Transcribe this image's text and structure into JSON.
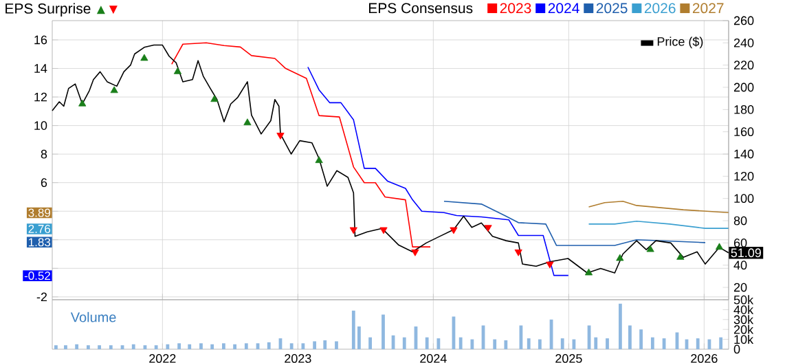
{
  "chart_data": [
    {
      "type": "line",
      "title": "EPS Surprise",
      "legend_title": "EPS Consensus",
      "legend": "top",
      "grid": true,
      "tick_labels": "y",
      "xlim": [
        "2021-03-10",
        "2026-03-08"
      ],
      "xticks": [
        "2022",
        "2023",
        "2024",
        "2025",
        "2026"
      ],
      "ylim": [
        -2.2,
        17.35
      ],
      "yticks": [
        -2,
        {
          "value": 0,
          "label": null
        },
        {
          "value": 2,
          "label": null
        },
        {
          "value": 4,
          "label": null
        },
        6,
        8,
        10,
        12,
        14,
        16
      ],
      "y2lim": [
        8.9,
        260
      ],
      "annotations": [
        {
          "text": "3.89",
          "y": 3.89
        },
        {
          "text": "2.76",
          "y": 2.76
        },
        {
          "text": "1.83",
          "y": 1.83
        },
        {
          "text": "-0.52",
          "y": -0.52
        }
      ],
      "y2ticks": [
        20,
        40,
        60,
        80,
        100,
        120,
        140,
        160,
        180,
        200,
        220,
        240,
        260
      ],
      "series": [
        {
          "name": "2023",
          "color": "#ff0000",
          "x": [
            "2022-01-26",
            "2022-02-25",
            "2022-04-29",
            "2022-06-16",
            "2022-07-30",
            "2022-08-29",
            "2022-10-31",
            "2022-11-29",
            "2023-01-24",
            "2023-02-27",
            "2023-04-23",
            "2023-05-31",
            "2023-06-29",
            "2023-07-29",
            "2023-08-24",
            "2023-10-18",
            "2023-11-06",
            "2023-12-24"
          ],
          "values": [
            14.3,
            15.7,
            15.8,
            15.6,
            15.5,
            14.9,
            14.7,
            14.0,
            13.3,
            10.7,
            10.6,
            7.1,
            6.0,
            6.0,
            5.0,
            4.8,
            1.5,
            1.5
          ]
        },
        {
          "name": "2024",
          "color": "#0000ff",
          "x": [
            "2023-01-28",
            "2023-02-27",
            "2023-03-28",
            "2023-04-27",
            "2023-05-31",
            "2023-06-29",
            "2023-07-29",
            "2023-08-31",
            "2023-10-18",
            "2023-11-06",
            "2023-12-01",
            "2024-01-30",
            "2024-03-04",
            "2024-05-10",
            "2024-07-23",
            "2024-08-18",
            "2024-10-24",
            "2024-11-22",
            "2024-12-31"
          ],
          "values": [
            14.1,
            12.5,
            11.6,
            11.6,
            10.4,
            7.0,
            7.0,
            6.1,
            5.6,
            4.8,
            4.0,
            3.9,
            3.7,
            3.6,
            3.4,
            2.3,
            2.3,
            -0.5,
            -0.5
          ]
        },
        {
          "name": "2025",
          "color": "#1f5fad",
          "x": [
            "2024-01-30",
            "2024-05-10",
            "2024-07-12",
            "2024-08-18",
            "2024-10-31",
            "2024-11-29",
            "2025-05-05",
            "2025-07-03",
            "2026-01-04"
          ],
          "values": [
            4.7,
            4.5,
            3.7,
            3.2,
            3.1,
            1.6,
            1.6,
            2.0,
            1.8
          ]
        },
        {
          "name": "2026",
          "color": "#3a9fd0",
          "x": [
            "2025-02-24",
            "2025-05-05",
            "2025-07-03",
            "2025-09-30",
            "2026-01-04",
            "2026-03-08"
          ],
          "values": [
            3.1,
            3.1,
            3.3,
            3.1,
            2.8,
            2.8
          ]
        },
        {
          "name": "2027",
          "color": "#b07d2e",
          "x": [
            "2025-02-24",
            "2025-04-08",
            "2025-05-27",
            "2025-07-03",
            "2025-11-06",
            "2026-03-08"
          ],
          "values": [
            4.3,
            4.6,
            4.7,
            4.4,
            4.1,
            3.9
          ]
        },
        {
          "name": "Price ($)",
          "color": "#000000",
          "axis": "y2",
          "x": [
            "2021-03-10",
            "2021-03-29",
            "2021-04-10",
            "2021-04-23",
            "2021-05-11",
            "2021-05-30",
            "2021-06-18",
            "2021-06-29",
            "2021-07-17",
            "2021-08-05",
            "2021-08-31",
            "2021-09-19",
            "2021-10-07",
            "2021-10-18",
            "2021-11-13",
            "2021-12-09",
            "2022-01-01",
            "2022-01-19",
            "2022-02-07",
            "2022-02-25",
            "2022-03-23",
            "2022-04-07",
            "2022-04-21",
            "2022-05-10",
            "2022-05-28",
            "2022-06-16",
            "2022-07-04",
            "2022-07-23",
            "2022-08-18",
            "2022-08-29",
            "2022-09-24",
            "2022-10-20",
            "2022-10-31",
            "2022-11-11",
            "2022-11-15",
            "2022-12-14",
            "2023-01-06",
            "2023-02-08",
            "2023-02-27",
            "2023-03-21",
            "2023-04-16",
            "2023-05-16",
            "2023-05-31",
            "2023-06-04",
            "2023-07-07",
            "2023-08-16",
            "2023-09-30",
            "2023-11-06",
            "2023-12-13",
            "2024-01-19",
            "2024-02-25",
            "2024-03-23",
            "2024-04-14",
            "2024-05-10",
            "2024-06-09",
            "2024-07-16",
            "2024-08-18",
            "2024-08-29",
            "2024-10-05",
            "2024-11-11",
            "2024-12-30",
            "2025-02-20",
            "2025-03-28",
            "2025-05-05",
            "2025-05-27",
            "2025-07-03",
            "2025-07-29",
            "2025-08-24",
            "2025-10-03",
            "2025-11-06",
            "2025-12-13",
            "2026-01-04",
            "2026-02-11",
            "2026-03-08"
          ],
          "values": [
            179,
            187,
            183,
            199,
            203,
            185,
            197,
            207,
            214,
            205,
            201,
            214,
            220,
            230,
            236,
            238,
            238,
            228,
            222,
            205,
            207,
            224,
            210,
            199,
            189,
            169,
            185,
            191,
            205,
            175,
            158,
            170,
            189,
            183,
            158,
            140,
            152,
            150,
            136,
            111,
            125,
            119,
            105,
            66,
            70,
            73,
            58,
            52,
            60,
            66,
            72,
            84,
            74,
            78,
            66,
            62,
            60,
            41,
            39,
            43,
            46,
            33,
            37,
            33,
            50,
            62,
            54,
            62,
            60,
            47,
            52,
            41,
            56,
            51.09
          ],
          "value_labels": [
            null,
            null,
            null,
            null,
            null,
            null,
            null,
            null,
            null,
            null,
            null,
            null,
            null,
            null,
            null,
            null,
            null,
            null,
            null,
            null,
            null,
            null,
            null,
            null,
            null,
            null,
            null,
            null,
            null,
            null,
            null,
            null,
            null,
            null,
            null,
            null,
            null,
            null,
            null,
            null,
            null,
            null,
            null,
            null,
            null,
            null,
            null,
            null,
            null,
            null,
            null,
            null,
            null,
            null,
            null,
            null,
            null,
            null,
            null,
            null,
            null,
            null,
            null,
            null,
            null,
            null,
            null,
            null,
            null,
            null,
            null,
            null,
            null,
            "51.09"
          ]
        },
        {
          "type": "scatter",
          "color": "#1a7f1a",
          "marker": "triangle",
          "axis": "y2",
          "x": [
            "2021-05-30",
            "2021-08-24",
            "2021-11-13",
            "2022-02-11",
            "2022-05-21",
            "2022-08-18",
            "2023-02-27",
            "2025-02-24",
            "2025-05-19",
            "2025-08-09",
            "2025-10-29",
            "2026-02-11"
          ],
          "values": [
            185,
            197,
            226,
            214,
            189,
            168,
            134,
            33,
            46,
            54,
            47,
            56
          ]
        },
        {
          "type": "scatter",
          "color": "#ff0000",
          "marker": "triangle-down",
          "axis": "y2",
          "x": [
            "2022-11-15",
            "2023-05-31",
            "2023-08-20",
            "2023-11-13",
            "2024-02-25",
            "2024-05-28",
            "2024-08-18",
            "2024-11-11"
          ],
          "values": [
            157,
            72,
            72,
            52,
            72,
            74,
            52,
            41
          ]
        }
      ]
    },
    {
      "type": "bar",
      "title": "Volume",
      "grid": "x",
      "color": "#8fb8e0",
      "xlim": [
        "2021-03-10",
        "2026-03-08"
      ],
      "xticks": [
        "2022",
        "2023",
        "2024",
        "2025",
        "2026"
      ],
      "ylim": [
        0,
        50000
      ],
      "yticks": [
        0,
        {
          "value": 10000,
          "label": "10k"
        },
        {
          "value": 20000,
          "label": "20k"
        },
        {
          "value": 30000,
          "label": "30k"
        },
        {
          "value": 40000,
          "label": "40k"
        },
        {
          "value": 50000,
          "label": "50k"
        }
      ],
      "x": [
        "2021-03-20",
        "2021-04-15",
        "2021-05-15",
        "2021-06-15",
        "2021-07-15",
        "2021-08-15",
        "2021-09-15",
        "2021-10-15",
        "2021-11-15",
        "2021-12-15",
        "2022-01-15",
        "2022-02-15",
        "2022-03-15",
        "2022-04-15",
        "2022-05-15",
        "2022-06-15",
        "2022-07-15",
        "2022-08-15",
        "2022-09-15",
        "2022-10-15",
        "2022-11-15",
        "2022-12-15",
        "2023-01-15",
        "2023-02-15",
        "2023-03-15",
        "2023-04-15",
        "2023-05-31",
        "2023-06-15",
        "2023-07-15",
        "2023-08-19",
        "2023-09-15",
        "2023-10-15",
        "2023-11-15",
        "2023-12-15",
        "2024-01-15",
        "2024-02-25",
        "2024-03-15",
        "2024-04-15",
        "2024-05-15",
        "2024-06-15",
        "2024-07-15",
        "2024-08-25",
        "2024-09-15",
        "2024-10-15",
        "2024-11-15",
        "2024-12-15",
        "2025-01-15",
        "2025-02-25",
        "2025-03-15",
        "2025-04-15",
        "2025-05-20",
        "2025-06-15",
        "2025-07-15",
        "2025-08-15",
        "2025-09-15",
        "2025-10-20",
        "2025-11-15",
        "2025-12-15",
        "2026-01-15",
        "2026-02-15"
      ],
      "values": [
        4000,
        4000,
        5000,
        4000,
        4000,
        4000,
        4000,
        5000,
        4000,
        4000,
        5000,
        6000,
        5000,
        6000,
        5000,
        6000,
        5000,
        6000,
        6000,
        7000,
        11000,
        6000,
        6000,
        8000,
        9000,
        8000,
        39000,
        23000,
        12000,
        35000,
        14000,
        12000,
        23000,
        12000,
        11000,
        33000,
        12000,
        10000,
        24000,
        10000,
        9000,
        24000,
        11000,
        10000,
        30000,
        11000,
        10000,
        24000,
        12000,
        11000,
        46000,
        24000,
        20000,
        12000,
        11000,
        17000,
        10000,
        11000,
        10000,
        12000
      ]
    }
  ]
}
